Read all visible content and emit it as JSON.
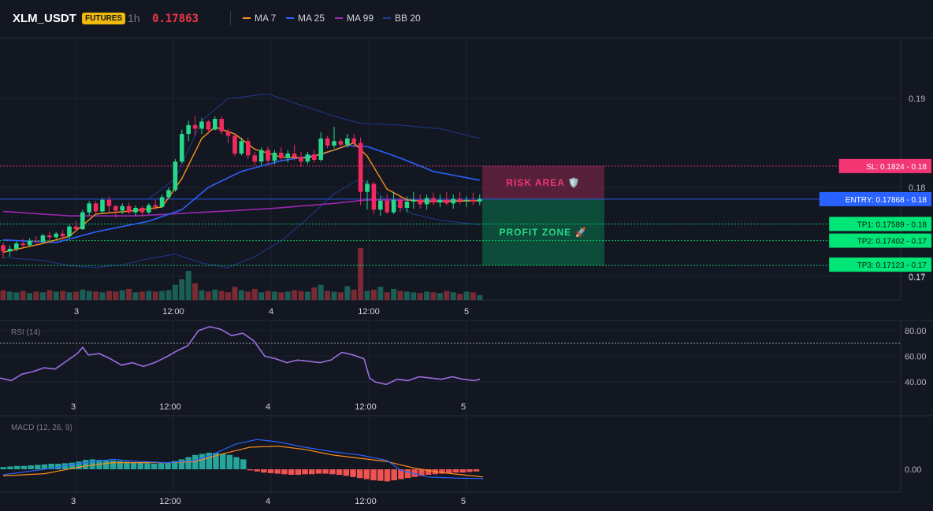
{
  "header": {
    "symbol": "XLM_USDT",
    "badge": "FUTURES",
    "interval": "1h",
    "last_price": "0.17863",
    "indicators": [
      {
        "label": "MA 7",
        "color": "#f7931a"
      },
      {
        "label": "MA 25",
        "color": "#2962ff"
      },
      {
        "label": "MA 99",
        "color": "#9c27b0"
      },
      {
        "label": "BB 20",
        "color": "#1e3a8a"
      }
    ]
  },
  "chart_data": {
    "type": "candlestick",
    "colors": {
      "up": "#26d98a",
      "down": "#f2295e",
      "volume_up": "#1b5e55",
      "volume_down": "#7a2a33"
    },
    "price_axis": {
      "ticks": [
        {
          "value": 0.19,
          "label": "0.19"
        },
        {
          "value": 0.18,
          "label": "0.18"
        },
        {
          "value": 0.17,
          "label": "0.17"
        }
      ]
    },
    "time_axis": {
      "labels": [
        "3",
        "12:00",
        "4",
        "12:00",
        "5"
      ]
    },
    "levels": [
      {
        "name": "sl",
        "label": "SL: 0.1824 - 0.18",
        "value": 0.1824,
        "color": "#f23673"
      },
      {
        "name": "entry",
        "label": "ENTRY: 0.17868 - 0.18",
        "value": 0.17868,
        "color": "#2962ff"
      },
      {
        "name": "tp1",
        "label": "TP1: 0.17589 - 0.18",
        "value": 0.17589,
        "color": "#00e676"
      },
      {
        "name": "tp2",
        "label": "TP2: 0.17402 - 0.17",
        "value": 0.17402,
        "color": "#00e676"
      },
      {
        "name": "tp3",
        "label": "TP3: 0.17123 - 0.17",
        "value": 0.17123,
        "color": "#00e676"
      }
    ],
    "zones": {
      "risk": "RISK AREA 🛡️",
      "profit": "PROFIT ZONE 🚀"
    },
    "candles": [
      [
        0.1735,
        0.1738,
        0.172,
        0.1728
      ],
      [
        0.1728,
        0.1735,
        0.1722,
        0.1731
      ],
      [
        0.1731,
        0.174,
        0.1728,
        0.1737
      ],
      [
        0.1737,
        0.1742,
        0.1733,
        0.1735
      ],
      [
        0.1735,
        0.1743,
        0.1734,
        0.174
      ],
      [
        0.174,
        0.1745,
        0.1737,
        0.1739
      ],
      [
        0.1739,
        0.1748,
        0.1738,
        0.1746
      ],
      [
        0.1746,
        0.175,
        0.174,
        0.1744
      ],
      [
        0.1744,
        0.175,
        0.1742,
        0.1748
      ],
      [
        0.1748,
        0.1752,
        0.1741,
        0.1745
      ],
      [
        0.1745,
        0.1758,
        0.1743,
        0.1756
      ],
      [
        0.1756,
        0.1762,
        0.175,
        0.1753
      ],
      [
        0.1753,
        0.1775,
        0.1752,
        0.1772
      ],
      [
        0.1772,
        0.1785,
        0.1768,
        0.1782
      ],
      [
        0.1782,
        0.1785,
        0.177,
        0.1773
      ],
      [
        0.1773,
        0.1788,
        0.177,
        0.1786
      ],
      [
        0.1786,
        0.179,
        0.1772,
        0.1779
      ],
      [
        0.1779,
        0.178,
        0.1766,
        0.1774
      ],
      [
        0.1774,
        0.1782,
        0.177,
        0.1779
      ],
      [
        0.1779,
        0.1783,
        0.177,
        0.1772
      ],
      [
        0.1772,
        0.178,
        0.1768,
        0.1777
      ],
      [
        0.1777,
        0.1779,
        0.1767,
        0.1772
      ],
      [
        0.1772,
        0.1782,
        0.177,
        0.178
      ],
      [
        0.178,
        0.1786,
        0.1775,
        0.1778
      ],
      [
        0.1778,
        0.1792,
        0.1777,
        0.1789
      ],
      [
        0.1789,
        0.18,
        0.1787,
        0.1797
      ],
      [
        0.1797,
        0.1832,
        0.1795,
        0.1829
      ],
      [
        0.1829,
        0.1865,
        0.1827,
        0.186
      ],
      [
        0.186,
        0.1875,
        0.1852,
        0.187
      ],
      [
        0.187,
        0.188,
        0.1858,
        0.1866
      ],
      [
        0.1866,
        0.1878,
        0.186,
        0.1874
      ],
      [
        0.1874,
        0.1876,
        0.186,
        0.1865
      ],
      [
        0.1865,
        0.188,
        0.1864,
        0.1877
      ],
      [
        0.1877,
        0.188,
        0.186,
        0.1863
      ],
      [
        0.1863,
        0.1866,
        0.185,
        0.1858
      ],
      [
        0.1858,
        0.186,
        0.1835,
        0.1838
      ],
      [
        0.1838,
        0.1856,
        0.1836,
        0.1852
      ],
      [
        0.1852,
        0.1856,
        0.1832,
        0.1836
      ],
      [
        0.1836,
        0.184,
        0.1825,
        0.1829
      ],
      [
        0.1829,
        0.1845,
        0.1825,
        0.1842
      ],
      [
        0.1842,
        0.1846,
        0.1825,
        0.183
      ],
      [
        0.183,
        0.1842,
        0.1826,
        0.1839
      ],
      [
        0.1839,
        0.1845,
        0.183,
        0.1833
      ],
      [
        0.1833,
        0.1842,
        0.1828,
        0.1838
      ],
      [
        0.1838,
        0.1848,
        0.183,
        0.1834
      ],
      [
        0.1834,
        0.184,
        0.1823,
        0.1829
      ],
      [
        0.1829,
        0.184,
        0.1826,
        0.1837
      ],
      [
        0.1837,
        0.1842,
        0.1828,
        0.1831
      ],
      [
        0.1831,
        0.1862,
        0.1829,
        0.1855
      ],
      [
        0.1855,
        0.1858,
        0.1844,
        0.1847
      ],
      [
        0.1847,
        0.1868,
        0.1844,
        0.1852
      ],
      [
        0.1852,
        0.1855,
        0.1844,
        0.1848
      ],
      [
        0.1848,
        0.186,
        0.1845,
        0.1855
      ],
      [
        0.1855,
        0.186,
        0.1845,
        0.185
      ],
      [
        0.185,
        0.1856,
        0.178,
        0.1795
      ],
      [
        0.1795,
        0.1808,
        0.1775,
        0.1804
      ],
      [
        0.1804,
        0.1806,
        0.177,
        0.1775
      ],
      [
        0.1775,
        0.179,
        0.1768,
        0.1785
      ],
      [
        0.1785,
        0.1792,
        0.177,
        0.1772
      ],
      [
        0.1772,
        0.1795,
        0.177,
        0.1786
      ],
      [
        0.1786,
        0.179,
        0.1772,
        0.1777
      ],
      [
        0.1777,
        0.179,
        0.1772,
        0.1784
      ],
      [
        0.1784,
        0.1795,
        0.1776,
        0.1786
      ],
      [
        0.1786,
        0.1792,
        0.1776,
        0.1781
      ],
      [
        0.1781,
        0.1792,
        0.1775,
        0.1788
      ],
      [
        0.1788,
        0.1794,
        0.178,
        0.1783
      ],
      [
        0.1783,
        0.1792,
        0.1778,
        0.1786
      ],
      [
        0.1786,
        0.1795,
        0.178,
        0.1782
      ],
      [
        0.1782,
        0.1792,
        0.1776,
        0.1787
      ],
      [
        0.1787,
        0.1795,
        0.1781,
        0.1785
      ],
      [
        0.1785,
        0.179,
        0.1778,
        0.1786
      ],
      [
        0.1786,
        0.1794,
        0.178,
        0.1784
      ],
      [
        0.1784,
        0.1792,
        0.178,
        0.1787
      ]
    ],
    "volume": [
      14,
      12,
      11,
      13,
      10,
      12,
      11,
      14,
      12,
      13,
      11,
      12,
      15,
      13,
      12,
      11,
      13,
      12,
      14,
      16,
      11,
      12,
      13,
      12,
      13,
      14,
      22,
      30,
      42,
      24,
      14,
      12,
      15,
      13,
      11,
      19,
      14,
      12,
      16,
      11,
      13,
      12,
      11,
      12,
      14,
      13,
      12,
      18,
      22,
      13,
      12,
      11,
      20,
      15,
      75,
      13,
      15,
      19,
      11,
      16,
      13,
      12,
      11,
      10,
      12,
      11,
      10,
      13,
      11,
      9,
      12,
      11,
      7
    ],
    "ma7_anchors": [
      [
        0,
        0.1727
      ],
      [
        6,
        0.1737
      ],
      [
        10,
        0.1745
      ],
      [
        14,
        0.177
      ],
      [
        20,
        0.1774
      ],
      [
        24,
        0.1778
      ],
      [
        27,
        0.181
      ],
      [
        30,
        0.1855
      ],
      [
        32,
        0.1868
      ],
      [
        35,
        0.186
      ],
      [
        38,
        0.1843
      ],
      [
        42,
        0.1834
      ],
      [
        46,
        0.1833
      ],
      [
        50,
        0.1842
      ],
      [
        53,
        0.185
      ],
      [
        55,
        0.1835
      ],
      [
        58,
        0.1798
      ],
      [
        61,
        0.1786
      ],
      [
        64,
        0.1784
      ],
      [
        72,
        0.1785
      ]
    ],
    "ma25_anchors": [
      [
        0,
        0.1741
      ],
      [
        8,
        0.1738
      ],
      [
        14,
        0.175
      ],
      [
        22,
        0.1762
      ],
      [
        27,
        0.1775
      ],
      [
        31,
        0.18
      ],
      [
        36,
        0.1818
      ],
      [
        42,
        0.183
      ],
      [
        48,
        0.1837
      ],
      [
        52,
        0.1847
      ],
      [
        55,
        0.1846
      ],
      [
        60,
        0.1833
      ],
      [
        65,
        0.1818
      ],
      [
        72,
        0.1808
      ]
    ],
    "ma99_anchors": [
      [
        0,
        0.1773
      ],
      [
        10,
        0.1768
      ],
      [
        20,
        0.1768
      ],
      [
        30,
        0.1772
      ],
      [
        40,
        0.1776
      ],
      [
        50,
        0.1782
      ],
      [
        55,
        0.1786
      ],
      [
        72,
        0.1785
      ]
    ],
    "bb_upper_anchors": [
      [
        22,
        0.1787
      ],
      [
        26,
        0.181
      ],
      [
        30,
        0.1875
      ],
      [
        34,
        0.19
      ],
      [
        40,
        0.1905
      ],
      [
        46,
        0.189
      ],
      [
        50,
        0.188
      ],
      [
        54,
        0.1872
      ],
      [
        60,
        0.187
      ],
      [
        66,
        0.1866
      ],
      [
        72,
        0.1855
      ]
    ],
    "bb_lower_anchors": [
      [
        0,
        0.1721
      ],
      [
        6,
        0.1718
      ],
      [
        10,
        0.1712
      ],
      [
        14,
        0.171
      ],
      [
        18,
        0.1713
      ],
      [
        22,
        0.172
      ],
      [
        26,
        0.1725
      ],
      [
        30,
        0.1715
      ],
      [
        34,
        0.171
      ],
      [
        38,
        0.1722
      ],
      [
        42,
        0.174
      ],
      [
        46,
        0.1765
      ],
      [
        50,
        0.1793
      ],
      [
        54,
        0.181
      ],
      [
        58,
        0.1785
      ],
      [
        62,
        0.177
      ],
      [
        66,
        0.1763
      ],
      [
        72,
        0.1758
      ]
    ],
    "rsi": {
      "label": "RSI (14)",
      "ticks": [
        {
          "value": 80,
          "label": "80.00"
        },
        {
          "value": 60,
          "label": "60.00"
        },
        {
          "value": 40,
          "label": "40.00"
        }
      ],
      "level": 70,
      "anchors": [
        [
          0,
          43
        ],
        [
          2,
          41
        ],
        [
          4,
          46
        ],
        [
          6,
          48
        ],
        [
          8,
          51
        ],
        [
          10,
          50
        ],
        [
          12,
          56
        ],
        [
          14,
          62
        ],
        [
          15,
          67
        ],
        [
          16,
          61
        ],
        [
          18,
          62
        ],
        [
          20,
          58
        ],
        [
          22,
          53
        ],
        [
          24,
          55
        ],
        [
          26,
          52
        ],
        [
          28,
          55
        ],
        [
          30,
          59
        ],
        [
          32,
          64
        ],
        [
          34,
          68
        ],
        [
          36,
          80
        ],
        [
          38,
          83
        ],
        [
          40,
          81
        ],
        [
          42,
          76
        ],
        [
          44,
          78
        ],
        [
          46,
          72
        ],
        [
          48,
          60
        ],
        [
          50,
          58
        ],
        [
          52,
          55
        ],
        [
          54,
          57
        ],
        [
          56,
          56
        ],
        [
          58,
          55
        ],
        [
          60,
          57
        ],
        [
          62,
          63
        ],
        [
          64,
          61
        ],
        [
          66,
          58
        ],
        [
          67,
          43
        ],
        [
          68,
          40
        ],
        [
          70,
          38
        ],
        [
          72,
          42
        ],
        [
          74,
          41
        ],
        [
          76,
          44
        ],
        [
          78,
          43
        ],
        [
          80,
          42
        ],
        [
          82,
          44
        ],
        [
          84,
          42
        ],
        [
          86,
          41
        ],
        [
          87,
          42
        ]
      ]
    },
    "macd": {
      "label": "MACD (12, 26, 9)",
      "ticks": [
        {
          "value": 0,
          "label": "0.00"
        }
      ],
      "hist": [
        0.2,
        0.25,
        0.3,
        0.3,
        0.35,
        0.4,
        0.45,
        0.5,
        0.5,
        0.55,
        0.6,
        0.7,
        0.85,
        0.9,
        0.85,
        0.8,
        0.8,
        0.75,
        0.7,
        0.65,
        0.6,
        0.55,
        0.5,
        0.55,
        0.6,
        0.75,
        0.9,
        1.1,
        1.3,
        1.4,
        1.5,
        1.5,
        1.4,
        1.3,
        1.1,
        0.9,
        -0.1,
        -0.2,
        -0.3,
        -0.35,
        -0.4,
        -0.45,
        -0.5,
        -0.5,
        -0.45,
        -0.45,
        -0.4,
        -0.4,
        -0.45,
        -0.5,
        -0.6,
        -0.7,
        -0.8,
        -0.9,
        -1.0,
        -1.05,
        -1.1,
        -1.0,
        -0.9,
        -0.8,
        -0.7,
        -0.6,
        -0.5,
        -0.45,
        -0.4,
        -0.35,
        -0.3,
        -0.3,
        -0.25,
        -0.2
      ],
      "macd_anchors": [
        [
          0,
          -0.5
        ],
        [
          6,
          0.0
        ],
        [
          12,
          0.6
        ],
        [
          16,
          0.9
        ],
        [
          20,
          0.7
        ],
        [
          24,
          0.6
        ],
        [
          28,
          0.8
        ],
        [
          30,
          1.2
        ],
        [
          34,
          2.3
        ],
        [
          37,
          2.7
        ],
        [
          40,
          2.5
        ],
        [
          44,
          2.0
        ],
        [
          48,
          1.6
        ],
        [
          52,
          1.3
        ],
        [
          56,
          0.8
        ],
        [
          58,
          -0.1
        ],
        [
          62,
          -0.7
        ],
        [
          66,
          -0.8
        ],
        [
          70,
          -0.85
        ]
      ],
      "signal_anchors": [
        [
          0,
          -0.6
        ],
        [
          6,
          -0.4
        ],
        [
          12,
          0.3
        ],
        [
          16,
          0.6
        ],
        [
          20,
          0.6
        ],
        [
          24,
          0.6
        ],
        [
          28,
          0.7
        ],
        [
          32,
          1.4
        ],
        [
          36,
          2.0
        ],
        [
          40,
          2.1
        ],
        [
          44,
          1.8
        ],
        [
          48,
          1.3
        ],
        [
          52,
          1.0
        ],
        [
          56,
          0.7
        ],
        [
          60,
          0.1
        ],
        [
          64,
          -0.3
        ],
        [
          70,
          -0.7
        ]
      ]
    }
  }
}
